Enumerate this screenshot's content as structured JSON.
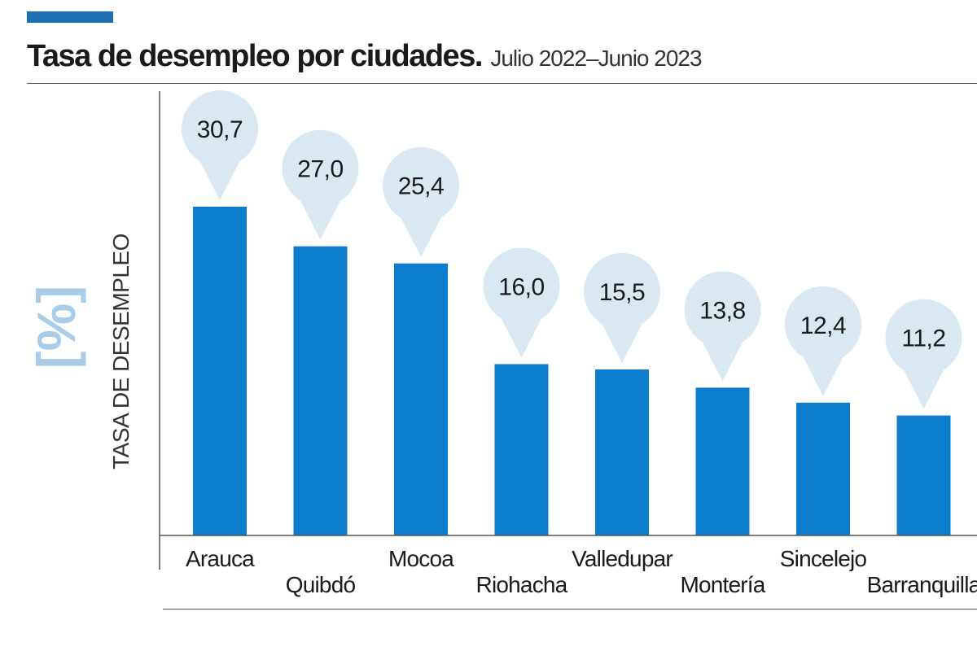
{
  "header": {
    "title": "Tasa de desempleo por ciudades.",
    "subtitle": "Julio 2022–Junio 2023"
  },
  "colors": {
    "bar": "#0b7dcc",
    "bubble": "#d9e8f1",
    "accent": "#1f6fb5",
    "unit": "#a9cde8"
  },
  "chart_data": {
    "type": "bar",
    "title": "Tasa de desempleo por ciudades.",
    "subtitle": "Julio 2022–Junio 2023",
    "ylabel": "TASA DE DESEMPLEO",
    "unit_label": "[%]",
    "xlabel": "",
    "ylim": [
      0,
      30.7
    ],
    "grid": false,
    "categories": [
      "Arauca",
      "Quibdó",
      "Mocoa",
      "Riohacha",
      "Valledupar",
      "Montería",
      "Sincelejo",
      "Barranquilla"
    ],
    "values": [
      30.7,
      27.0,
      25.4,
      16.0,
      15.5,
      13.8,
      12.4,
      11.2
    ],
    "value_labels": [
      "30,7",
      "27,0",
      "25,4",
      "16,0",
      "15,5",
      "13,8",
      "12,4",
      "11,2"
    ]
  }
}
